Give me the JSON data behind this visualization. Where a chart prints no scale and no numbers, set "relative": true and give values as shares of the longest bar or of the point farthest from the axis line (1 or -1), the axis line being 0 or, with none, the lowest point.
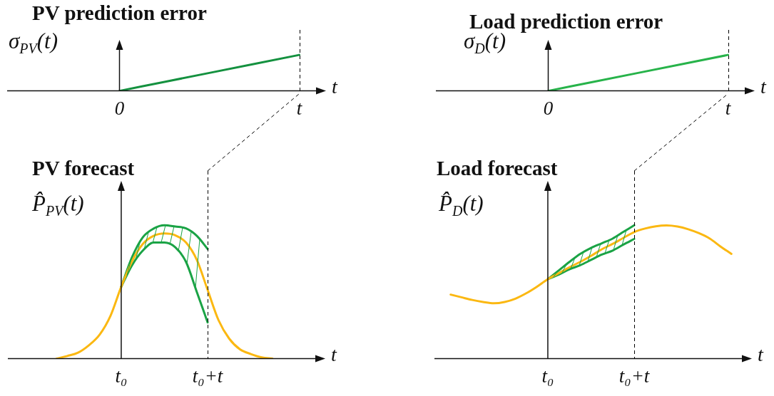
{
  "chart_data": [
    {
      "type": "line",
      "title": "PV prediction error",
      "ylabel": "σ$_{PV}$(t)",
      "xlabel": "t",
      "relative": true,
      "tick_labels": "x",
      "categories": [
        null,
        null,
        "0",
        null,
        null,
        null,
        "t"
      ],
      "series": [
        {
          "color": "#14913f",
          "values": [
            null,
            null,
            0,
            0.25,
            0.5,
            0.75,
            1
          ]
        }
      ],
      "ref_lines": [
        {
          "axis": "x",
          "value": "t",
          "line_style": "dashed",
          "color": "#000000"
        }
      ]
    },
    {
      "type": "line",
      "title": "Load prediction error",
      "ylabel": "σ$_{D}$(t)",
      "xlabel": "t",
      "relative": true,
      "tick_labels": "x",
      "categories": [
        null,
        null,
        "0",
        null,
        null,
        null,
        "t"
      ],
      "series": [
        {
          "color": "#27b34a",
          "values": [
            null,
            null,
            0,
            0.25,
            0.5,
            0.75,
            1
          ]
        }
      ],
      "ref_lines": [
        {
          "axis": "x",
          "value": "t",
          "line_style": "dashed",
          "color": "#000000"
        }
      ]
    },
    {
      "type": "line",
      "title": "PV forecast",
      "ylabel": "P̂$_{PV}$(t)",
      "xlabel": "t",
      "relative": true,
      "tick_labels": "x",
      "categories": [
        null,
        null,
        null,
        null,
        null,
        null,
        null,
        null,
        null,
        null,
        "t₀",
        null,
        null,
        null,
        null,
        null,
        null,
        null,
        "t₀+t",
        null,
        null,
        null,
        null,
        null,
        null,
        null,
        null,
        null,
        null
      ],
      "series": [
        {
          "color": "#fbb812",
          "values": [
            null,
            null,
            null,
            null,
            0,
            0.02,
            0.045,
            0.1,
            0.18,
            0.32,
            0.539,
            0.73,
            0.86,
            0.92,
            0.938,
            0.925,
            0.87,
            0.74,
            0.515,
            0.29,
            0.15,
            0.07,
            0.035,
            0.01,
            0,
            null,
            null,
            null,
            null
          ]
        },
        {
          "color": "#1aa345",
          "values": [
            null,
            null,
            null,
            null,
            null,
            null,
            null,
            null,
            null,
            null,
            0.539,
            0.76,
            0.91,
            0.975,
            1,
            0.99,
            0.976,
            0.92,
            0.822,
            null,
            null,
            null,
            null,
            null,
            null,
            null,
            null,
            null,
            null
          ]
        },
        {
          "color": "#1aa345",
          "values": [
            null,
            null,
            null,
            null,
            null,
            null,
            null,
            null,
            null,
            null,
            0.539,
            0.7,
            0.81,
            0.87,
            0.87,
            0.835,
            0.725,
            0.5,
            0.272,
            null,
            null,
            null,
            null,
            null,
            null,
            null,
            null,
            null,
            null
          ]
        }
      ],
      "ref_lines": [
        {
          "axis": "x",
          "value": "t₀+t",
          "line_style": "dashed",
          "color": "#000000"
        }
      ]
    },
    {
      "type": "line",
      "title": "Load forecast",
      "ylabel": "P̂$_{D}$(t)",
      "xlabel": "t",
      "relative": true,
      "tick_labels": "x",
      "categories": [
        null,
        null,
        null,
        null,
        null,
        null,
        null,
        null,
        null,
        null,
        "t₀",
        null,
        null,
        null,
        null,
        null,
        null,
        null,
        "t₀+t",
        null,
        null,
        null,
        null,
        null,
        null,
        null,
        null,
        null,
        null
      ],
      "series": [
        {
          "color": "#fbb812",
          "values": [
            null,
            0.48,
            0.46,
            0.44,
            0.425,
            0.415,
            0.425,
            0.45,
            0.49,
            0.54,
            0.596,
            0.64,
            0.685,
            0.725,
            0.77,
            0.82,
            0.86,
            0.905,
            0.949,
            0.975,
            0.992,
            0.998,
            0.99,
            0.97,
            0.94,
            0.9,
            0.84,
            0.785,
            null
          ]
        },
        {
          "color": "#1aa345",
          "values": [
            null,
            null,
            null,
            null,
            null,
            null,
            null,
            null,
            null,
            null,
            0.596,
            0.66,
            0.725,
            0.785,
            0.83,
            0.865,
            0.9,
            0.95,
            1,
            null,
            null,
            null,
            null,
            null,
            null,
            null,
            null,
            null,
            null
          ]
        },
        {
          "color": "#1aa345",
          "values": [
            null,
            null,
            null,
            null,
            null,
            null,
            null,
            null,
            null,
            null,
            0.596,
            0.63,
            0.67,
            0.7,
            0.74,
            0.78,
            0.81,
            0.855,
            0.897,
            null,
            null,
            null,
            null,
            null,
            null,
            null,
            null,
            null,
            null
          ]
        }
      ],
      "ref_lines": [
        {
          "axis": "x",
          "value": "t₀+t",
          "line_style": "dashed",
          "color": "#000000"
        }
      ]
    }
  ]
}
